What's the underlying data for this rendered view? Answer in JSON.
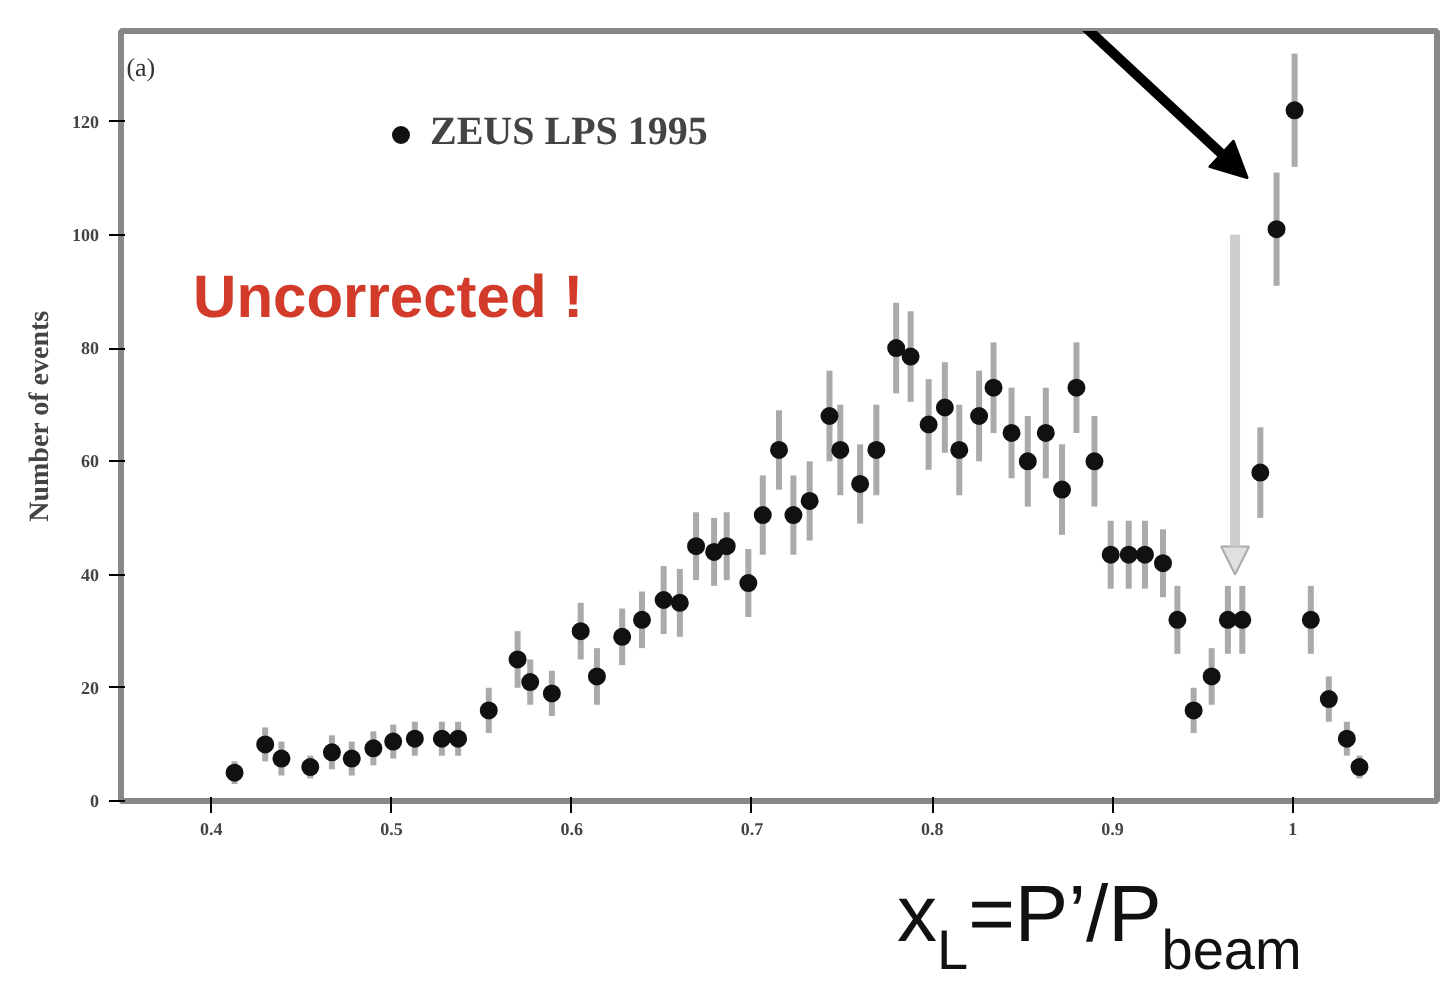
{
  "chart_data": {
    "type": "scatter",
    "xlabel": "x$_{L}$=P’/P$_{beam}$",
    "ylabel": "Number of events",
    "annotations": [
      "(a)",
      "Uncorrected !"
    ],
    "xlim": [
      0.35,
      1.08
    ],
    "xticks": [
      0.4,
      0.5,
      0.6,
      0.7,
      0.8,
      0.9,
      1
    ],
    "ylim": [
      0,
      136
    ],
    "yticks": [
      0,
      20,
      40,
      60,
      80,
      100,
      120
    ],
    "legend": "top",
    "marker": "circle",
    "grid": false,
    "series": [
      {
        "name": "ZEUS LPS 1995",
        "color": "#111111",
        "x": [
          0.413,
          0.43,
          0.439,
          0.455,
          0.467,
          0.478,
          0.49,
          0.501,
          0.513,
          0.528,
          0.537,
          0.554,
          0.57,
          0.577,
          0.589,
          0.605,
          0.614,
          0.628,
          0.639,
          0.651,
          0.66,
          0.669,
          0.679,
          0.686,
          0.698,
          0.706,
          0.715,
          0.723,
          0.732,
          0.743,
          0.749,
          0.76,
          0.769,
          0.78,
          0.788,
          0.798,
          0.807,
          0.815,
          0.826,
          0.834,
          0.844,
          0.853,
          0.863,
          0.872,
          0.88,
          0.89,
          0.899,
          0.909,
          0.918,
          0.928,
          0.936,
          0.945,
          0.955,
          0.964,
          0.972,
          0.982,
          0.991,
          1.001,
          1.01,
          1.02,
          1.03,
          1.037
        ],
        "values": [
          5,
          10,
          7.5,
          6,
          8.6,
          7.5,
          9.3,
          10.5,
          11,
          11,
          11,
          16,
          25,
          21,
          19,
          30,
          22,
          29,
          32,
          35.5,
          35,
          45,
          44,
          45,
          38.5,
          50.5,
          62,
          50.5,
          53,
          68,
          62,
          56,
          62,
          80,
          78.5,
          66.5,
          69.5,
          62,
          68,
          73,
          65,
          60,
          65,
          55,
          73,
          60,
          43.5,
          43.5,
          43.5,
          42,
          32,
          16,
          22,
          32,
          32,
          58,
          101,
          122,
          32,
          18,
          11,
          6
        ],
        "errors": [
          2,
          3,
          3,
          2,
          3,
          3,
          3,
          3,
          3,
          3,
          3,
          4,
          5,
          4,
          4,
          5,
          5,
          5,
          5,
          6,
          6,
          6,
          6,
          6,
          6,
          7,
          7,
          7,
          7,
          8,
          8,
          7,
          8,
          8,
          8,
          8,
          8,
          8,
          8,
          8,
          8,
          8,
          8,
          8,
          8,
          8,
          6,
          6,
          6,
          6,
          6,
          4,
          5,
          6,
          6,
          8,
          10,
          10,
          6,
          4,
          3,
          2
        ]
      }
    ]
  }
}
